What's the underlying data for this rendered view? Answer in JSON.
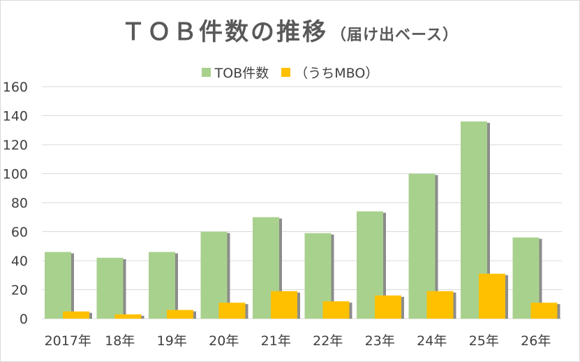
{
  "title": {
    "main": "ＴＯＢ件数の推移",
    "sub": "（届け出ベース）"
  },
  "legend": [
    {
      "label": "TOB件数",
      "color": "#a9d18e"
    },
    {
      "label": "（うちMBO）",
      "color": "#ffc000"
    }
  ],
  "chart_data": {
    "type": "bar",
    "categories": [
      "2017年",
      "18年",
      "19年",
      "20年",
      "21年",
      "22年",
      "23年",
      "24年",
      "25年",
      "26年"
    ],
    "series": [
      {
        "name": "TOB件数",
        "color": "#a9d18e",
        "values": [
          46,
          42,
          46,
          60,
          70,
          59,
          74,
          100,
          136,
          56
        ]
      },
      {
        "name": "（うちMBO）",
        "color": "#ffc000",
        "values": [
          5,
          3,
          6,
          11,
          19,
          12,
          16,
          19,
          31,
          11
        ]
      }
    ],
    "yticks": [
      0,
      20,
      40,
      60,
      80,
      100,
      120,
      140,
      160
    ],
    "ylim": [
      0,
      160
    ],
    "grid": true,
    "legend_position": "top"
  }
}
